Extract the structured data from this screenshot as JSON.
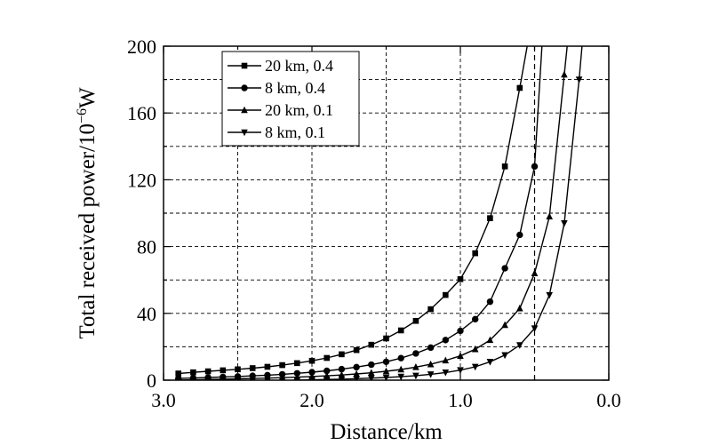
{
  "chart_data": {
    "type": "line",
    "xlabel": "Distance/km",
    "ylabel": "Total received power/10",
    "ylabel_exponent": "−6",
    "ylabel_unit": "W",
    "xlim": [
      3.0,
      0.0
    ],
    "ylim": [
      0,
      200
    ],
    "x_reversed": true,
    "x_ticks": [
      3.0,
      2.0,
      1.0,
      0.0
    ],
    "x_tick_labels": [
      "3.0",
      "2.0",
      "1.0",
      "0.0"
    ],
    "y_ticks": [
      0,
      40,
      80,
      120,
      160,
      200
    ],
    "y_tick_labels": [
      "0",
      "40",
      "80",
      "120",
      "160",
      "200"
    ],
    "grid": true,
    "grid_style": "dashed",
    "vertical_marker_x": 0.5,
    "legend_position": "top-left",
    "series": [
      {
        "name": "20 km, 0.4",
        "marker": "square",
        "x": [
          2.9,
          2.8,
          2.7,
          2.6,
          2.5,
          2.4,
          2.3,
          2.2,
          2.1,
          2.0,
          1.9,
          1.8,
          1.7,
          1.6,
          1.5,
          1.4,
          1.3,
          1.2,
          1.1,
          1.0,
          0.9,
          0.8,
          0.7,
          0.6,
          0.55
        ],
        "y": [
          4.0,
          4.7,
          5.3,
          5.9,
          6.5,
          7.2,
          8.0,
          9.0,
          10.2,
          11.6,
          13.3,
          15.5,
          18.0,
          21.2,
          25.0,
          29.8,
          35.5,
          42.5,
          51.0,
          60.5,
          76.0,
          97.0,
          128.0,
          175.0,
          200.0
        ]
      },
      {
        "name": "8 km, 0.4",
        "marker": "circle",
        "x": [
          2.9,
          2.8,
          2.7,
          2.6,
          2.5,
          2.4,
          2.3,
          2.2,
          2.1,
          2.0,
          1.9,
          1.8,
          1.7,
          1.6,
          1.5,
          1.4,
          1.3,
          1.2,
          1.1,
          1.0,
          0.9,
          0.8,
          0.7,
          0.6,
          0.5,
          0.45
        ],
        "y": [
          1.0,
          1.3,
          1.6,
          1.9,
          2.2,
          2.6,
          3.0,
          3.5,
          4.1,
          4.8,
          5.6,
          6.6,
          7.8,
          9.3,
          11.0,
          13.2,
          16.0,
          19.5,
          24.0,
          29.5,
          36.5,
          47.0,
          67.0,
          87.0,
          128.0,
          200.0
        ]
      },
      {
        "name": "20 km, 0.1",
        "marker": "triangle-up",
        "x": [
          2.9,
          2.8,
          2.7,
          2.6,
          2.5,
          2.4,
          2.3,
          2.2,
          2.1,
          2.0,
          1.9,
          1.8,
          1.7,
          1.6,
          1.5,
          1.4,
          1.3,
          1.2,
          1.1,
          1.0,
          0.9,
          0.8,
          0.7,
          0.6,
          0.5,
          0.4,
          0.3,
          0.28
        ],
        "y": [
          0.0,
          0.2,
          0.4,
          0.6,
          0.8,
          1.0,
          1.2,
          1.5,
          1.8,
          2.2,
          2.6,
          3.1,
          3.7,
          4.4,
          5.3,
          6.4,
          7.8,
          9.5,
          11.8,
          14.5,
          18.5,
          24.0,
          33.0,
          43.0,
          64.0,
          98.0,
          183.0,
          200.0
        ]
      },
      {
        "name": "8 km, 0.1",
        "marker": "triangle-down",
        "x": [
          2.9,
          2.8,
          2.7,
          2.6,
          2.5,
          2.4,
          2.3,
          2.2,
          2.1,
          2.0,
          1.9,
          1.8,
          1.7,
          1.6,
          1.5,
          1.4,
          1.3,
          1.2,
          1.1,
          1.0,
          0.9,
          0.8,
          0.7,
          0.6,
          0.5,
          0.4,
          0.3,
          0.2,
          0.18
        ],
        "y": [
          -1.0,
          -0.9,
          -0.8,
          -0.7,
          -0.6,
          -0.5,
          -0.3,
          -0.2,
          0.0,
          0.2,
          0.4,
          0.6,
          0.9,
          1.2,
          1.6,
          2.1,
          2.7,
          3.5,
          4.6,
          6.0,
          8.0,
          11.0,
          15.0,
          21.0,
          31.0,
          51.0,
          94.0,
          180.0,
          200.0
        ]
      }
    ]
  }
}
